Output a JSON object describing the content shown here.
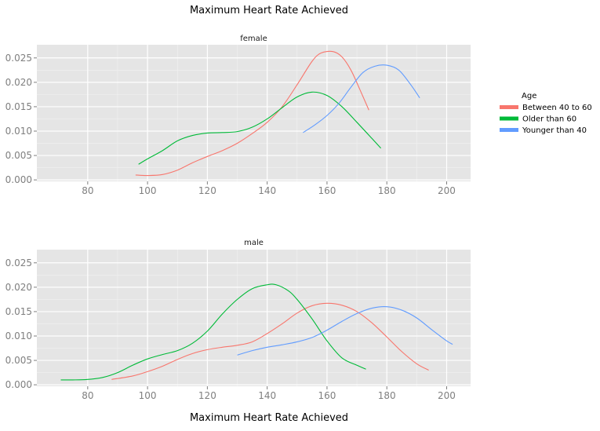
{
  "chart_data": {
    "type": "line",
    "title": "Maximum Heart Rate Achieved",
    "xlabel": "Maximum Heart Rate Achieved",
    "ylabel": "",
    "xlim": [
      63,
      208
    ],
    "ylim": [
      -0.0003,
      0.0277
    ],
    "x_ticks": [
      80,
      100,
      120,
      140,
      160,
      180,
      200
    ],
    "y_ticks": [
      "0.000",
      "0.005",
      "0.010",
      "0.015",
      "0.020",
      "0.025"
    ],
    "grid": true,
    "legend_position": "right",
    "legend": {
      "title": "Age",
      "entries": [
        {
          "name": "Between 40 to 60",
          "color": "#F8766D"
        },
        {
          "name": "Older than 60",
          "color": "#00BA38"
        },
        {
          "name": "Younger than 40",
          "color": "#619CFF"
        }
      ]
    },
    "panels": [
      {
        "label": "female",
        "series": [
          {
            "name": "Between 40 to 60",
            "color": "#F8766D",
            "x": [
              96,
              100,
              105,
              110,
              115,
              120,
              125,
              130,
              135,
              140,
              145,
              150,
              155,
              158,
              162,
              165,
              168,
              171,
              174
            ],
            "y": [
              0.001,
              0.0009,
              0.0011,
              0.002,
              0.0035,
              0.0048,
              0.006,
              0.0075,
              0.0095,
              0.0118,
              0.015,
              0.0195,
              0.0243,
              0.026,
              0.0263,
              0.0252,
              0.0225,
              0.0185,
              0.0143
            ]
          },
          {
            "name": "Older than 60",
            "color": "#00BA38",
            "x": [
              97,
              100,
              105,
              110,
              115,
              120,
              125,
              130,
              135,
              140,
              145,
              150,
              155,
              160,
              165,
              170,
              175,
              178
            ],
            "y": [
              0.0032,
              0.0043,
              0.006,
              0.008,
              0.0091,
              0.0096,
              0.0097,
              0.0099,
              0.0108,
              0.0125,
              0.0148,
              0.017,
              0.018,
              0.0173,
              0.015,
              0.0118,
              0.0085,
              0.0065
            ]
          },
          {
            "name": "Younger than 40",
            "color": "#619CFF",
            "x": [
              152,
              156,
              160,
              164,
              168,
              172,
              176,
              180,
              184,
              188,
              191
            ],
            "y": [
              0.0097,
              0.0113,
              0.0132,
              0.0157,
              0.019,
              0.022,
              0.0233,
              0.0235,
              0.0225,
              0.0195,
              0.0168
            ]
          }
        ]
      },
      {
        "label": "male",
        "series": [
          {
            "name": "Between 40 to 60",
            "color": "#F8766D",
            "x": [
              88,
              95,
              100,
              105,
              110,
              115,
              120,
              125,
              130,
              135,
              140,
              145,
              150,
              155,
              160,
              165,
              170,
              175,
              180,
              185,
              190,
              194
            ],
            "y": [
              0.0011,
              0.0018,
              0.0027,
              0.0038,
              0.0052,
              0.0064,
              0.0072,
              0.0077,
              0.0081,
              0.0088,
              0.0105,
              0.0125,
              0.0147,
              0.0162,
              0.0167,
              0.0163,
              0.015,
              0.0127,
              0.0098,
              0.0068,
              0.0043,
              0.003
            ]
          },
          {
            "name": "Older than 60",
            "color": "#00BA38",
            "x": [
              71,
              75,
              80,
              85,
              90,
              95,
              100,
              105,
              110,
              115,
              120,
              125,
              130,
              135,
              140,
              143,
              147,
              150,
              155,
              160,
              165,
              170,
              173
            ],
            "y": [
              0.001,
              0.001,
              0.0011,
              0.0015,
              0.0025,
              0.004,
              0.0053,
              0.0062,
              0.007,
              0.0085,
              0.011,
              0.0145,
              0.0175,
              0.0197,
              0.0205,
              0.0205,
              0.0193,
              0.0175,
              0.0135,
              0.009,
              0.0055,
              0.004,
              0.0032
            ]
          },
          {
            "name": "Younger than 40",
            "color": "#619CFF",
            "x": [
              130,
              135,
              140,
              145,
              150,
              155,
              160,
              165,
              170,
              175,
              180,
              185,
              190,
              195,
              200,
              202
            ],
            "y": [
              0.0061,
              0.007,
              0.0077,
              0.0082,
              0.0088,
              0.0097,
              0.0112,
              0.013,
              0.0146,
              0.0157,
              0.016,
              0.0153,
              0.0137,
              0.0113,
              0.009,
              0.0083
            ]
          }
        ]
      }
    ]
  }
}
